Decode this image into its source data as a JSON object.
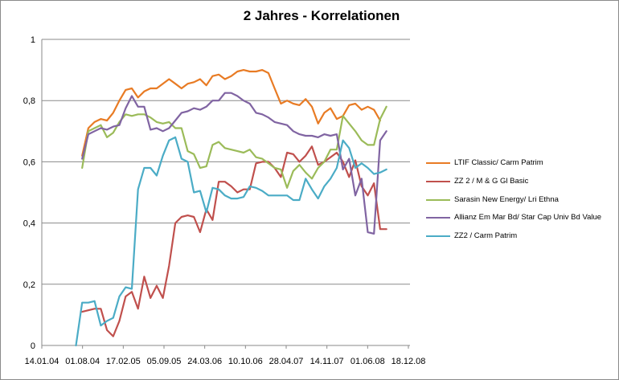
{
  "chart_data": {
    "type": "line",
    "title": "2 Jahres - Korrelationen",
    "xlabel": "",
    "ylabel": "",
    "ylim": [
      0,
      1
    ],
    "y_ticks": [
      "0",
      "0,2",
      "0,4",
      "0,6",
      "0,8",
      "1"
    ],
    "y_tick_values": [
      0,
      0.2,
      0.4,
      0.6,
      0.8,
      1.0
    ],
    "x_tick_labels": [
      "14.01.04",
      "01.08.04",
      "17.02.05",
      "05.09.05",
      "24.03.06",
      "10.10.06",
      "28.04.07",
      "14.11.07",
      "01.06.08",
      "18.12.08"
    ],
    "x_range_months": [
      0,
      59.3
    ],
    "grid": true,
    "legend_position": "right",
    "series": [
      {
        "name": "LTIF Classic/ Carm Patrim",
        "color": "#e87b24",
        "x": [
          6.5,
          7.5,
          8.5,
          9.5,
          10.5,
          11.5,
          12.5,
          13.5,
          14.5,
          15.5,
          16.5,
          17.5,
          18.5,
          19.5,
          20.5,
          21.5,
          22.5,
          23.5,
          24.5,
          25.5,
          26.5,
          27.5,
          28.5,
          29.5,
          30.5,
          31.5,
          32.5,
          33.5,
          34.5,
          35.5,
          36.5,
          37.5,
          38.5,
          39.5,
          40.5,
          41.5,
          42.5,
          43.5,
          44.5,
          45.5,
          46.5,
          47.5,
          48.5,
          49.5,
          50.5,
          51.5,
          52.5,
          53.5,
          54.5
        ],
        "values": [
          0.62,
          0.71,
          0.73,
          0.74,
          0.735,
          0.76,
          0.8,
          0.835,
          0.84,
          0.81,
          0.83,
          0.84,
          0.84,
          0.855,
          0.87,
          0.855,
          0.84,
          0.855,
          0.86,
          0.87,
          0.85,
          0.88,
          0.885,
          0.87,
          0.88,
          0.895,
          0.9,
          0.895,
          0.895,
          0.9,
          0.89,
          0.84,
          0.79,
          0.8,
          0.79,
          0.785,
          0.805,
          0.78,
          0.725,
          0.76,
          0.775,
          0.74,
          0.75,
          0.785,
          0.79,
          0.77,
          0.78,
          0.77,
          0.735
        ]
      },
      {
        "name": "ZZ 2 / M & G Gl Basic",
        "color": "#c0504d",
        "x": [
          6.5,
          7.5,
          8.5,
          9.5,
          10.5,
          11.5,
          12.5,
          13.5,
          14.5,
          15.5,
          16.5,
          17.5,
          18.5,
          19.5,
          20.5,
          21.5,
          22.5,
          23.5,
          24.5,
          25.5,
          26.5,
          27.5,
          28.5,
          29.5,
          30.5,
          31.5,
          32.5,
          33.5,
          34.5,
          35.5,
          36.5,
          37.5,
          38.5,
          39.5,
          40.5,
          41.5,
          42.5,
          43.5,
          44.5,
          45.5,
          46.5,
          47.5,
          48.5,
          49.5,
          50.5,
          51.5,
          52.5,
          53.5,
          54.5,
          55.5
        ],
        "values": [
          0.11,
          0.115,
          0.12,
          0.12,
          0.05,
          0.03,
          0.08,
          0.16,
          0.175,
          0.12,
          0.225,
          0.155,
          0.195,
          0.155,
          0.26,
          0.4,
          0.42,
          0.425,
          0.42,
          0.37,
          0.445,
          0.41,
          0.535,
          0.535,
          0.52,
          0.5,
          0.51,
          0.51,
          0.595,
          0.6,
          0.6,
          0.58,
          0.55,
          0.63,
          0.625,
          0.6,
          0.62,
          0.65,
          0.59,
          0.6,
          0.615,
          0.63,
          0.6,
          0.55,
          0.605,
          0.52,
          0.49,
          0.53,
          0.38,
          0.38
        ]
      },
      {
        "name": "Sarasin New Energy/ Lri Ethna",
        "color": "#9bbb59",
        "x": [
          6.5,
          7.5,
          8.5,
          9.5,
          10.5,
          11.5,
          12.5,
          13.5,
          14.5,
          15.5,
          16.5,
          17.5,
          18.5,
          19.5,
          20.5,
          21.5,
          22.5,
          23.5,
          24.5,
          25.5,
          26.5,
          27.5,
          28.5,
          29.5,
          30.5,
          31.5,
          32.5,
          33.5,
          34.5,
          35.5,
          36.5,
          37.5,
          38.5,
          39.5,
          40.5,
          41.5,
          42.5,
          43.5,
          44.5,
          45.5,
          46.5,
          47.5,
          48.5,
          49.5,
          50.5,
          51.5,
          52.5,
          53.5,
          54.5,
          55.5
        ],
        "values": [
          0.58,
          0.7,
          0.71,
          0.72,
          0.68,
          0.695,
          0.73,
          0.755,
          0.75,
          0.755,
          0.755,
          0.745,
          0.73,
          0.725,
          0.73,
          0.71,
          0.71,
          0.635,
          0.625,
          0.58,
          0.585,
          0.655,
          0.665,
          0.645,
          0.64,
          0.635,
          0.63,
          0.64,
          0.615,
          0.61,
          0.595,
          0.58,
          0.575,
          0.515,
          0.57,
          0.59,
          0.565,
          0.545,
          0.58,
          0.6,
          0.64,
          0.64,
          0.75,
          0.725,
          0.7,
          0.67,
          0.655,
          0.655,
          0.74,
          0.78
        ]
      },
      {
        "name": "Allianz Em Mar Bd/ Star Cap Univ Bd Value",
        "color": "#8064a2",
        "x": [
          6.5,
          7.5,
          8.5,
          9.5,
          10.5,
          11.5,
          12.5,
          13.5,
          14.5,
          15.5,
          16.5,
          17.5,
          18.5,
          19.5,
          20.5,
          21.5,
          22.5,
          23.5,
          24.5,
          25.5,
          26.5,
          27.5,
          28.5,
          29.5,
          30.5,
          31.5,
          32.5,
          33.5,
          34.5,
          35.5,
          36.5,
          37.5,
          38.5,
          39.5,
          40.5,
          41.5,
          42.5,
          43.5,
          44.5,
          45.5,
          46.5,
          47.5,
          48.5,
          49.5,
          50.5,
          51.5,
          52.5,
          53.5,
          54.5,
          55.5
        ],
        "values": [
          0.61,
          0.69,
          0.7,
          0.71,
          0.705,
          0.715,
          0.72,
          0.775,
          0.815,
          0.78,
          0.78,
          0.705,
          0.71,
          0.7,
          0.71,
          0.735,
          0.76,
          0.765,
          0.775,
          0.77,
          0.78,
          0.8,
          0.8,
          0.825,
          0.825,
          0.815,
          0.8,
          0.79,
          0.76,
          0.755,
          0.745,
          0.73,
          0.725,
          0.72,
          0.7,
          0.69,
          0.685,
          0.685,
          0.68,
          0.69,
          0.685,
          0.69,
          0.575,
          0.61,
          0.49,
          0.545,
          0.37,
          0.365,
          0.67,
          0.7
        ]
      },
      {
        "name": "ZZ2 / Carm Patrim",
        "color": "#4bacc6",
        "x": [
          5.5,
          6.5,
          7.5,
          8.5,
          9.5,
          10.5,
          11.5,
          12.5,
          13.5,
          14.5,
          15.5,
          16.5,
          17.5,
          18.5,
          19.5,
          20.5,
          21.5,
          22.5,
          23.5,
          24.5,
          25.5,
          26.5,
          27.5,
          28.5,
          29.5,
          30.5,
          31.5,
          32.5,
          33.5,
          34.5,
          35.5,
          36.5,
          37.5,
          38.5,
          39.5,
          40.5,
          41.5,
          42.5,
          43.5,
          44.5,
          45.5,
          46.5,
          47.5,
          48.5,
          49.5,
          50.5,
          51.5,
          52.5,
          53.5,
          54.5,
          55.5
        ],
        "values": [
          0.0,
          0.14,
          0.14,
          0.145,
          0.065,
          0.08,
          0.09,
          0.16,
          0.19,
          0.185,
          0.51,
          0.58,
          0.58,
          0.555,
          0.62,
          0.67,
          0.68,
          0.61,
          0.6,
          0.5,
          0.505,
          0.435,
          0.515,
          0.51,
          0.49,
          0.48,
          0.48,
          0.485,
          0.52,
          0.515,
          0.505,
          0.49,
          0.49,
          0.49,
          0.49,
          0.475,
          0.475,
          0.545,
          0.51,
          0.48,
          0.52,
          0.545,
          0.58,
          0.67,
          0.645,
          0.58,
          0.595,
          0.58,
          0.56,
          0.565,
          0.575
        ]
      }
    ]
  }
}
